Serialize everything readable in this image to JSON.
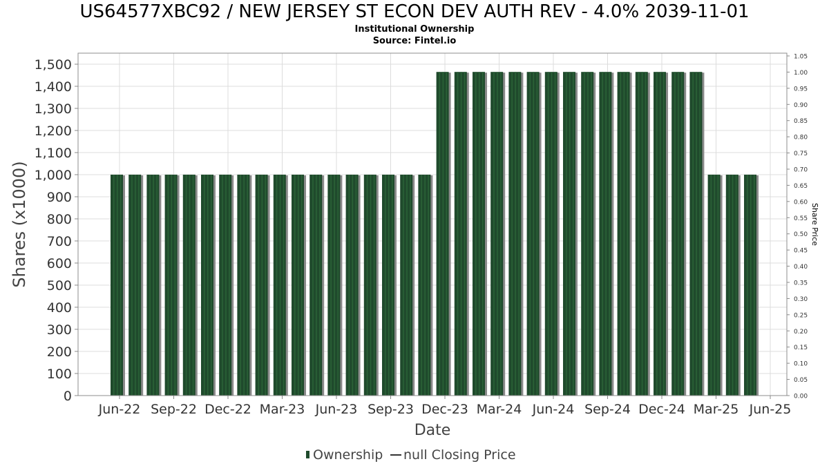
{
  "title": "US64577XBC92 / NEW JERSEY ST ECON DEV AUTH REV - 4.0% 2039-11-01",
  "subtitle": "Institutional Ownership",
  "source": "Source: Fintel.io",
  "colors": {
    "bar": "#1f4a2c",
    "bar_stripe": "#2b6338",
    "bar_shadow": "#8a8a8a",
    "grid": "#dcdcdc",
    "plot_border": "#8c8c8c"
  },
  "chart_data": {
    "type": "bar",
    "xlabel": "Date",
    "ylabel": "Shares (x1000)",
    "y2label": "Share Price",
    "ylim": [
      0,
      1550
    ],
    "y_ticks": [
      0,
      100,
      200,
      300,
      400,
      500,
      600,
      700,
      800,
      900,
      1000,
      1100,
      1200,
      1300,
      1400,
      1500
    ],
    "y2lim": [
      0,
      1.05
    ],
    "y2_ticks": [
      "0.00",
      "0.05",
      "0.10",
      "0.15",
      "0.20",
      "0.25",
      "0.30",
      "0.35",
      "0.40",
      "0.45",
      "0.50",
      "0.55",
      "0.60",
      "0.65",
      "0.70",
      "0.75",
      "0.80",
      "0.85",
      "0.90",
      "0.95",
      "1.00",
      "1.05"
    ],
    "x_tick_labels": [
      "Jun-22",
      "Sep-22",
      "Dec-22",
      "Mar-23",
      "Jun-23",
      "Sep-23",
      "Dec-23",
      "Mar-24",
      "Jun-24",
      "Sep-24",
      "Dec-24",
      "Mar-25",
      "Jun-25"
    ],
    "grid": true,
    "legend_position": "bottom",
    "legend": [
      {
        "label": "Ownership",
        "marker": "bar"
      },
      {
        "label": "null Closing Price",
        "marker": "line"
      }
    ],
    "series": [
      {
        "name": "Ownership",
        "values": [
          1000,
          1000,
          1000,
          1000,
          1000,
          1000,
          1000,
          1000,
          1000,
          1000,
          1000,
          1000,
          1000,
          1000,
          1000,
          1000,
          1000,
          1000,
          1465,
          1465,
          1465,
          1465,
          1465,
          1465,
          1465,
          1465,
          1465,
          1465,
          1465,
          1465,
          1465,
          1465,
          1465,
          1000,
          1000,
          1000
        ]
      }
    ]
  }
}
